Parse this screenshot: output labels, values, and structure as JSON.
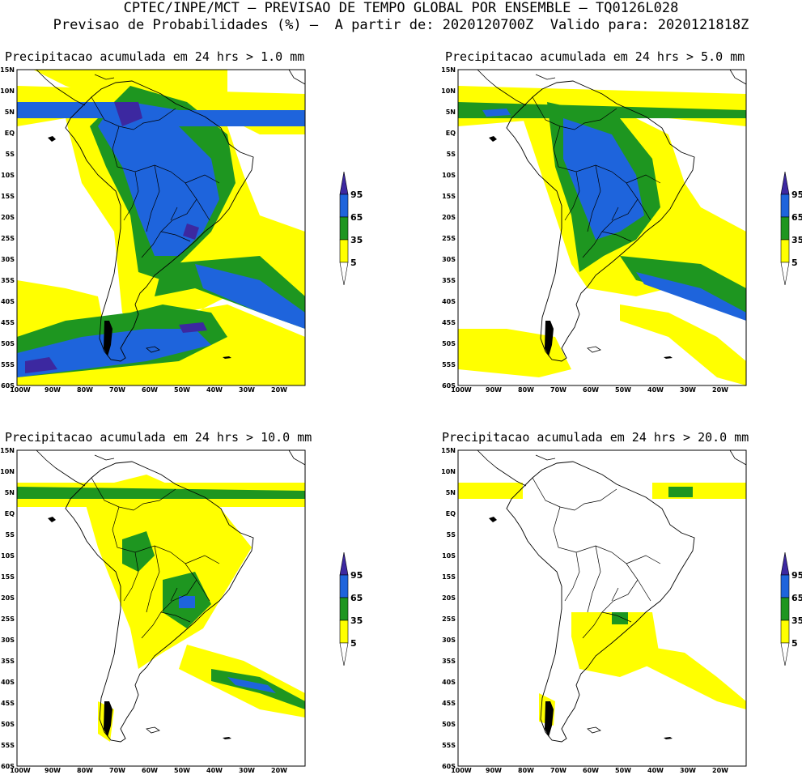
{
  "header": {
    "line1": "CPTEC/INPE/MCT – PREVISAO DE TEMPO GLOBAL POR ENSEMBLE – TQ0126L028",
    "line2": "Previsao de Probabilidades (%) –  A partir de: 2020120700Z  Valido para: 2020121818Z"
  },
  "axes": {
    "lat_labels": [
      "15N",
      "10N",
      "5N",
      "EQ",
      "5S",
      "10S",
      "15S",
      "20S",
      "25S",
      "30S",
      "35S",
      "40S",
      "45S",
      "50S",
      "55S",
      "60S"
    ],
    "lon_labels": [
      "100W",
      "90W",
      "80W",
      "70W",
      "60W",
      "50W",
      "40W",
      "30W",
      "20W"
    ]
  },
  "legend": {
    "levels": [
      "95",
      "65",
      "35",
      "5"
    ],
    "colors": {
      "yellow": "#ffff00",
      "green": "#1e9620",
      "blue": "#1e64dc",
      "purple": "#3c28a0"
    }
  },
  "panels": [
    {
      "title": "Precipitacao acumulada em 24 hrs > 1.0 mm"
    },
    {
      "title": "Precipitacao acumulada em 24 hrs > 5.0 mm"
    },
    {
      "title": "Precipitacao acumulada em 24 hrs > 10.0 mm"
    },
    {
      "title": "Precipitacao acumulada em 24 hrs > 20.0 mm"
    }
  ]
}
